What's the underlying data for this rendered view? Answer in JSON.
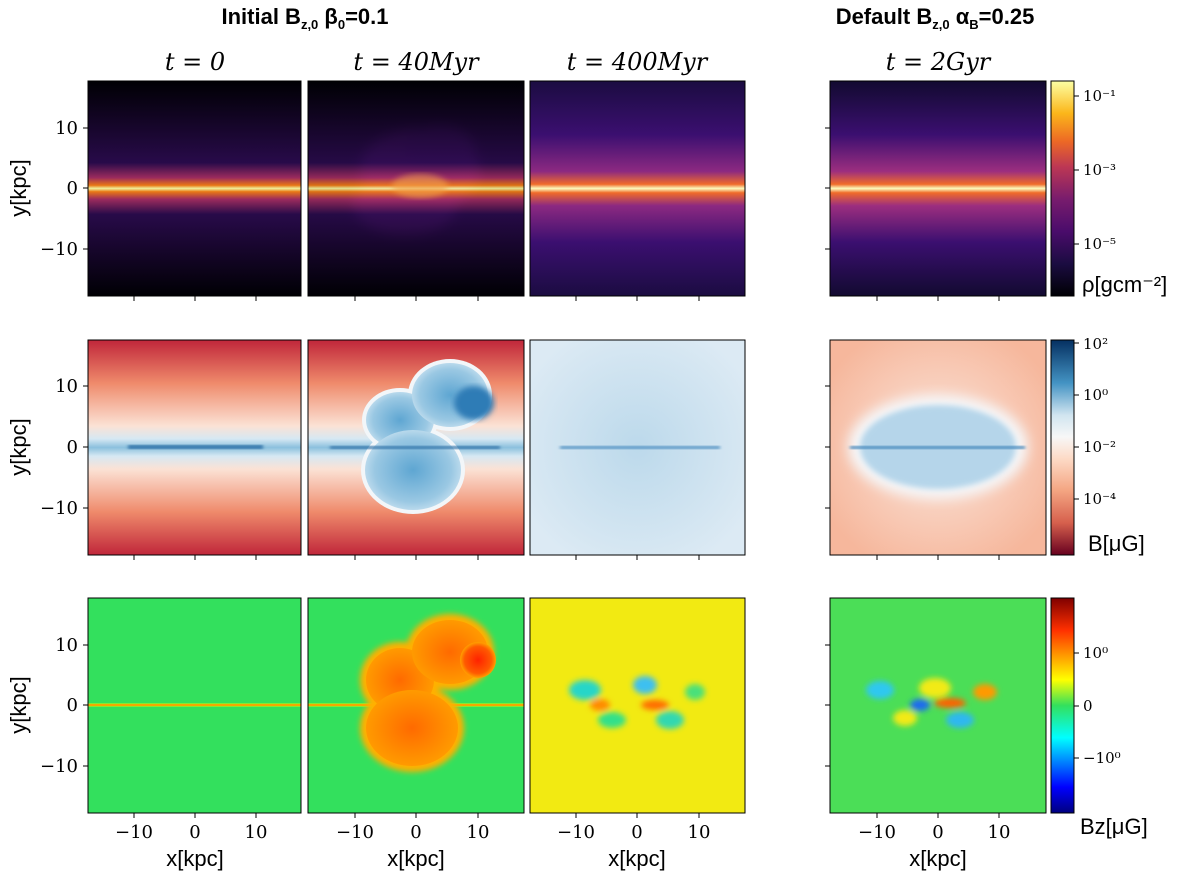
{
  "figure": {
    "group_titles": [
      {
        "main": "Initial B",
        "sub": "z,0",
        "greek": "β",
        "greek_sub": "0",
        "value": "=0.1"
      },
      {
        "main": "Default B",
        "sub": "z,0",
        "greek": "α",
        "greek_sub": "B",
        "value": "=0.25"
      }
    ],
    "columns": [
      {
        "time_label": "t = 0"
      },
      {
        "time_label": "t = 40Myr"
      },
      {
        "time_label": "t = 400Myr"
      },
      {
        "time_label": "t = 2Gyr"
      }
    ],
    "rows": [
      {
        "quantity": "density",
        "colormap": "inferno",
        "colorbar_ticks": [
          "10⁻¹",
          "10⁻³",
          "10⁻⁵"
        ],
        "colorbar_label": "ρ[gcm⁻²]"
      },
      {
        "quantity": "magnetic_field_strength",
        "colormap": "RdBu",
        "colorbar_ticks": [
          "10²",
          "10⁰",
          "10⁻²",
          "10⁻⁴"
        ],
        "colorbar_label": "B[μG]"
      },
      {
        "quantity": "vertical_field",
        "colormap": "jet",
        "colorbar_ticks": [
          "10⁰",
          "0",
          "−10⁰"
        ],
        "colorbar_label": "Bz[μG]"
      }
    ],
    "y_axis": {
      "label": "y[kpc]",
      "ticks": [
        "10",
        "0",
        "−10"
      ],
      "range": [
        -17.5,
        17.5
      ]
    },
    "x_axis": {
      "label": "x[kpc]",
      "ticks": [
        "−10",
        "0",
        "10"
      ],
      "range": [
        -17.5,
        17.5
      ]
    }
  }
}
